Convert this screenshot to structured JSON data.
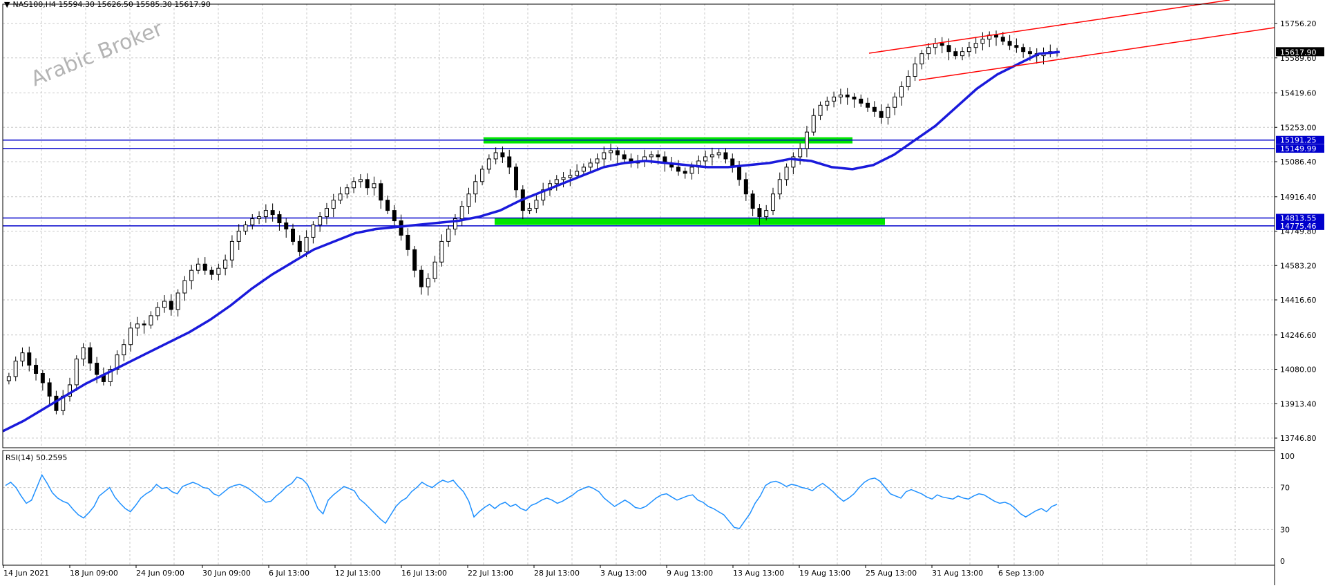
{
  "header": {
    "symbol_line": "NAS100,H4  15594.30 15626.50 15585.30 15617.90",
    "dropdown_icon": "triangle-down-icon"
  },
  "watermark": "Arabic Broker",
  "colors": {
    "candles": "#000000",
    "ma_line": "#1a1adb",
    "channel": "#ff0000",
    "zones": "#00e600",
    "hlines": "#0000cc",
    "rsi": "#1e90ff",
    "grid": "#c8c8c8",
    "price_label_bg": "#0000cc",
    "current_price_bg": "#000000"
  },
  "price_axis": {
    "ticks": [
      "15756.20",
      "15589.60",
      "15419.60",
      "15253.00",
      "15086.40",
      "14916.40",
      "14749.80",
      "14583.20",
      "14416.60",
      "14246.60",
      "14080.00",
      "13913.40",
      "13746.80"
    ],
    "current_price": "15617.90",
    "level_labels": [
      "15191.25",
      "15149.99",
      "14813.55",
      "14775.46"
    ]
  },
  "time_axis": {
    "labels": [
      "14 Jun 2021",
      "18 Jun 09:00",
      "24 Jun 09:00",
      "30 Jun 09:00",
      "6 Jul 13:00",
      "12 Jul 13:00",
      "16 Jul 13:00",
      "22 Jul 13:00",
      "28 Jul 13:00",
      "3 Aug 13:00",
      "9 Aug 13:00",
      "13 Aug 13:00",
      "19 Aug 13:00",
      "25 Aug 13:00",
      "31 Aug 13:00",
      "6 Sep 13:00"
    ]
  },
  "rsi": {
    "label": "RSI(14) 50.2595",
    "ticks": [
      "100",
      "70",
      "30",
      "0"
    ],
    "values": [
      72,
      75,
      70,
      62,
      55,
      58,
      70,
      82,
      74,
      65,
      60,
      57,
      55,
      49,
      44,
      41,
      46,
      52,
      62,
      66,
      70,
      61,
      55,
      50,
      47,
      53,
      60,
      64,
      67,
      73,
      69,
      70,
      66,
      64,
      71,
      73,
      75,
      73,
      70,
      69,
      64,
      62,
      66,
      70,
      72,
      73,
      71,
      68,
      64,
      60,
      56,
      57,
      62,
      66,
      71,
      74,
      80,
      78,
      73,
      62,
      50,
      45,
      58,
      63,
      67,
      71,
      69,
      67,
      59,
      55,
      50,
      45,
      40,
      36,
      44,
      52,
      57,
      60,
      66,
      70,
      75,
      72,
      70,
      74,
      77,
      75,
      77,
      71,
      66,
      57,
      42,
      47,
      51,
      54,
      50,
      54,
      56,
      52,
      54,
      50,
      48,
      53,
      55,
      58,
      60,
      58,
      55,
      57,
      60,
      63,
      67,
      69,
      71,
      69,
      66,
      60,
      56,
      52,
      55,
      58,
      55,
      51,
      50,
      52,
      56,
      60,
      63,
      64,
      61,
      58,
      60,
      62,
      63,
      58,
      56,
      52,
      50,
      47,
      44,
      38,
      32,
      31,
      38,
      45,
      55,
      62,
      72,
      75,
      76,
      74,
      71,
      73,
      72,
      70,
      69,
      67,
      71,
      74,
      70,
      66,
      61,
      57,
      60,
      64,
      70,
      75,
      78,
      79,
      76,
      70,
      64,
      62,
      60,
      66,
      68,
      66,
      64,
      61,
      59,
      63,
      61,
      60,
      59,
      62,
      60,
      59,
      62,
      64,
      63,
      60,
      57,
      55,
      56,
      54,
      50,
      45,
      42,
      45,
      48,
      50,
      47,
      52,
      54
    ]
  },
  "chart_data": {
    "type": "line",
    "title": "NAS100,H4",
    "close": [
      14045,
      14120,
      14160,
      14100,
      14060,
      14015,
      13950,
      13880,
      13950,
      14005,
      14130,
      14185,
      14110,
      14055,
      14020,
      14080,
      14150,
      14200,
      14280,
      14300,
      14295,
      14340,
      14380,
      14410,
      14370,
      14450,
      14510,
      14560,
      14590,
      14560,
      14540,
      14570,
      14610,
      14700,
      14750,
      14780,
      14810,
      14820,
      14850,
      14830,
      14790,
      14760,
      14700,
      14650,
      14720,
      14780,
      14820,
      14860,
      14900,
      14930,
      14960,
      14990,
      15000,
      14960,
      14980,
      14900,
      14850,
      14800,
      14730,
      14660,
      14560,
      14480,
      14520,
      14600,
      14700,
      14760,
      14810,
      14870,
      14930,
      14990,
      15050,
      15100,
      15130,
      15110,
      15060,
      14950,
      14850,
      14860,
      14900,
      14950,
      14980,
      15000,
      15010,
      15020,
      15040,
      15060,
      15080,
      15100,
      15130,
      15140,
      15120,
      15100,
      15080,
      15090,
      15110,
      15120,
      15110,
      15080,
      15060,
      15040,
      15030,
      15060,
      15090,
      15110,
      15120,
      15130,
      15100,
      15060,
      15000,
      14930,
      14860,
      14820,
      14850,
      14930,
      15000,
      15060,
      15110,
      15150,
      15230,
      15310,
      15360,
      15380,
      15400,
      15410,
      15400,
      15390,
      15370,
      15350,
      15330,
      15300,
      15350,
      15400,
      15450,
      15500,
      15560,
      15610,
      15640,
      15660,
      15650,
      15620,
      15600,
      15620,
      15640,
      15660,
      15680,
      15700,
      15690,
      15670,
      15650,
      15640,
      15620,
      15610,
      15600,
      15610,
      15620,
      15618
    ],
    "series": [
      {
        "values": [
          13780,
          13830,
          13890,
          13950,
          14010,
          14060,
          14110,
          14160,
          14210,
          14260,
          14320,
          14390,
          14470,
          14540,
          14600,
          14660,
          14700,
          14740,
          14760,
          14770,
          14780,
          14790,
          14800,
          14820,
          14850,
          14900,
          14940,
          14980,
          15020,
          15060,
          15080,
          15090,
          15080,
          15070,
          15060,
          15060,
          15070,
          15080,
          15100,
          15090,
          15060,
          15050,
          15070,
          15120,
          15190,
          15260,
          15350,
          15440,
          15510,
          15560,
          15610,
          15618
        ]
      }
    ],
    "levels": [
      15191.25,
      15149.99,
      14813.55,
      14775.46
    ],
    "ylim": [
      13700,
      15850
    ]
  }
}
